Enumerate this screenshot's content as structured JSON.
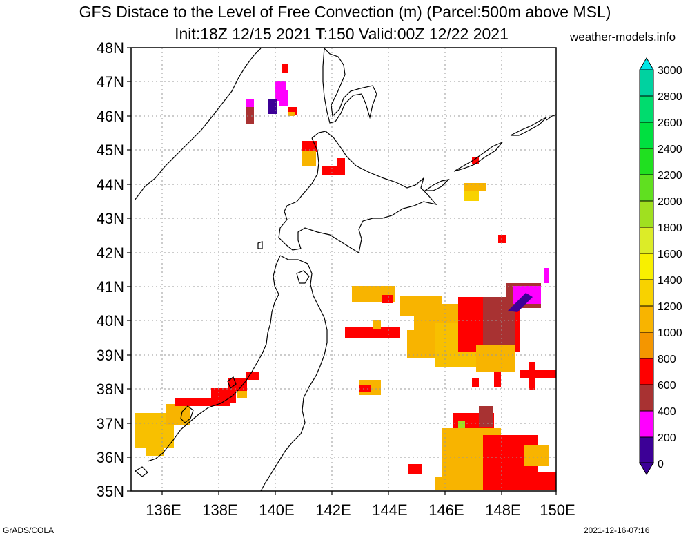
{
  "title": {
    "line1": "GFS Distace to the Level of Free Convection (m) (Parcel:500m above MSL)",
    "line2": "Init:18Z 12/15 2021 T:150 Valid:00Z 12/22 2021"
  },
  "site": "weather-models.info",
  "footer": {
    "credit": "GrADS/COLA",
    "timestamp": "2021-12-16-07:16"
  },
  "map": {
    "lat_labels": [
      "48N",
      "47N",
      "46N",
      "45N",
      "44N",
      "43N",
      "42N",
      "41N",
      "40N",
      "39N",
      "38N",
      "37N",
      "36N",
      "35N"
    ],
    "lon_labels": [
      "136E",
      "138E",
      "140E",
      "142E",
      "144E",
      "146E",
      "148E",
      "150E"
    ],
    "lat_range": [
      35,
      48
    ],
    "lon_range": [
      135,
      150
    ]
  },
  "colorbar": {
    "labels": [
      "3000",
      "2800",
      "2600",
      "2400",
      "2200",
      "2000",
      "1800",
      "1600",
      "1400",
      "1200",
      "1000",
      "800",
      "600",
      "400",
      "200",
      "0"
    ],
    "colors": [
      "#00c8c8",
      "#00d2a0",
      "#00dc6e",
      "#00e040",
      "#20e020",
      "#60e020",
      "#a0e020",
      "#dcec28",
      "#f8f000",
      "#f8d200",
      "#f8b400",
      "#f49600",
      "#ff0000",
      "#a83232",
      "#ff00ff",
      "#3c0096"
    ],
    "top_cap_color": "#00e6e6",
    "bottom_cap_color": "#3c0096"
  }
}
